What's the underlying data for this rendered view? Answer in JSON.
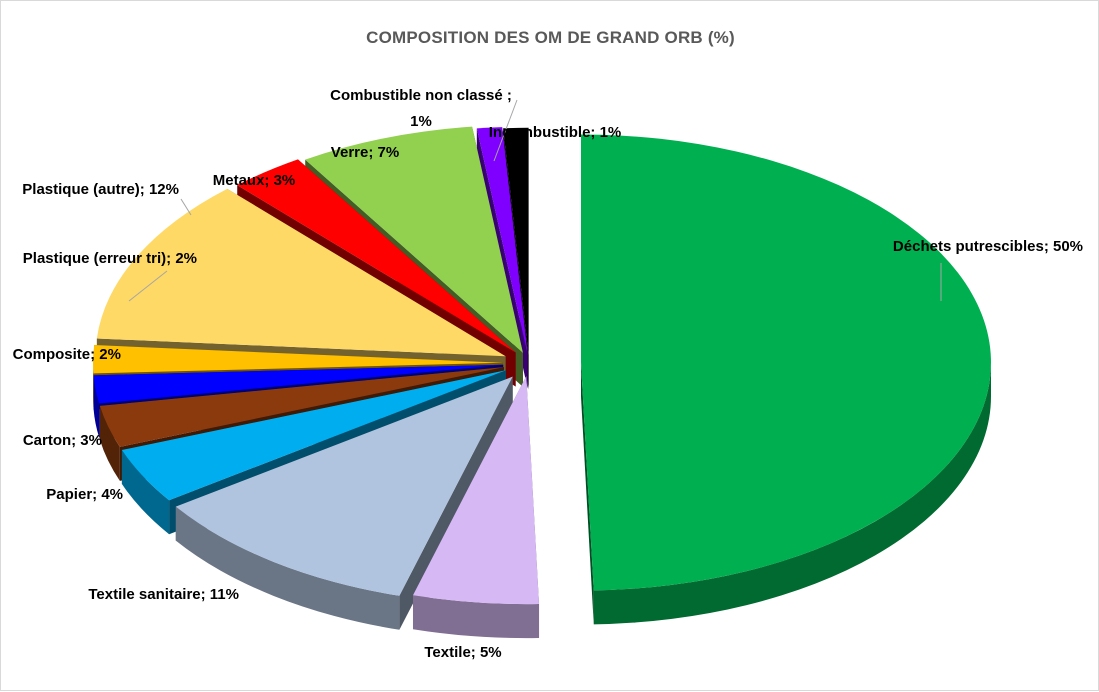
{
  "chart_data": {
    "type": "pie",
    "title": "COMPOSITION DES OM DE GRAND ORB (%)",
    "slices": [
      {
        "name": "Déchets putrescibles",
        "value": 50,
        "label": "Déchets putrescibles; 50%",
        "color": "#00b050"
      },
      {
        "name": "Textile",
        "value": 5,
        "label": "Textile; 5%",
        "color": "#d6b8f5"
      },
      {
        "name": "Textile sanitaire",
        "value": 11,
        "label": "Textile sanitaire; 11%",
        "color": "#b0c4e0"
      },
      {
        "name": "Papier",
        "value": 4,
        "label": "Papier; 4%",
        "color": "#00aeef"
      },
      {
        "name": "Carton",
        "value": 3,
        "label": "Carton; 3%",
        "color": "#8b3a0e"
      },
      {
        "name": "Composite",
        "value": 2,
        "label": "Composite; 2%",
        "color": "#0000ff"
      },
      {
        "name": "Plastique (erreur tri)",
        "value": 2,
        "label": "Plastique (erreur tri); 2%",
        "color": "#ffc000"
      },
      {
        "name": "Plastique (autre)",
        "value": 12,
        "label": "Plastique (autre); 12%",
        "color": "#ffd966"
      },
      {
        "name": "Metaux",
        "value": 3,
        "label": "Metaux; 3%",
        "color": "#ff0000"
      },
      {
        "name": "Verre",
        "value": 7,
        "label": "Verre; 7%",
        "color": "#92d050"
      },
      {
        "name": "Combustible non classé",
        "value": 1,
        "label": "Combustible non classé ;\n1%",
        "color": "#7f00ff"
      },
      {
        "name": "Incombustible",
        "value": 1,
        "label": "Incombustible; 1%",
        "color": "#000000"
      }
    ]
  }
}
